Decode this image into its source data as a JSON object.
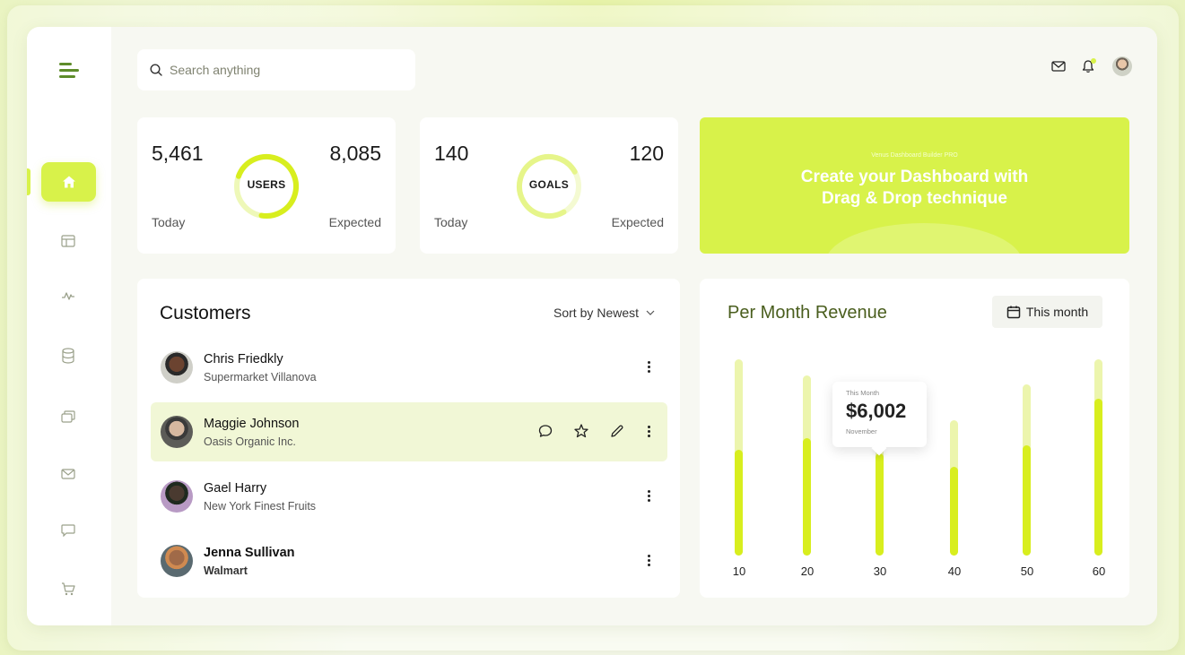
{
  "search": {
    "placeholder": "Search anything"
  },
  "stats": [
    {
      "today_value": "5,461",
      "today_label": "Today",
      "center_label": "USERS",
      "expected_value": "8,085",
      "expected_label": "Expected",
      "progress": 0.72
    },
    {
      "today_value": "140",
      "today_label": "Today",
      "center_label": "GOALS",
      "expected_value": "120",
      "expected_label": "Expected",
      "progress": 0.75
    }
  ],
  "promo": {
    "small": "Venus Dashboard Builder PRO",
    "title_line1": "Create your Dashboard with",
    "title_line2": "Drag & Drop technique"
  },
  "customers": {
    "title": "Customers",
    "sort_prefix": "Sort by",
    "sort_value": "Newest",
    "rows": [
      {
        "name": "Chris Friedkly",
        "company": "Supermarket Villanova"
      },
      {
        "name": "Maggie Johnson",
        "company": "Oasis Organic Inc."
      },
      {
        "name": "Gael Harry",
        "company": "New York Finest Fruits"
      },
      {
        "name": "Jenna Sullivan",
        "company": "Walmart"
      }
    ]
  },
  "revenue": {
    "title": "Per Month Revenue",
    "range_button": "This month",
    "tooltip": {
      "label": "This Month",
      "value": "$6,002",
      "month": "November"
    }
  },
  "chart_data": {
    "type": "bar",
    "categories": [
      "10",
      "20",
      "30",
      "40",
      "50",
      "60"
    ],
    "series": [
      {
        "values": [
          0.54,
          0.6,
          0.52,
          0.45,
          0.56,
          0.8
        ]
      }
    ],
    "track_heights": [
      1.0,
      0.92,
      0.64,
      0.69,
      0.87,
      1.0
    ],
    "title": "Per Month Revenue",
    "colors": {
      "fill": "#d8ee1e",
      "track": "#ecf5ad"
    }
  },
  "colors": {
    "accent": "#d8f24a",
    "brand_green": "#5e8c2a"
  }
}
